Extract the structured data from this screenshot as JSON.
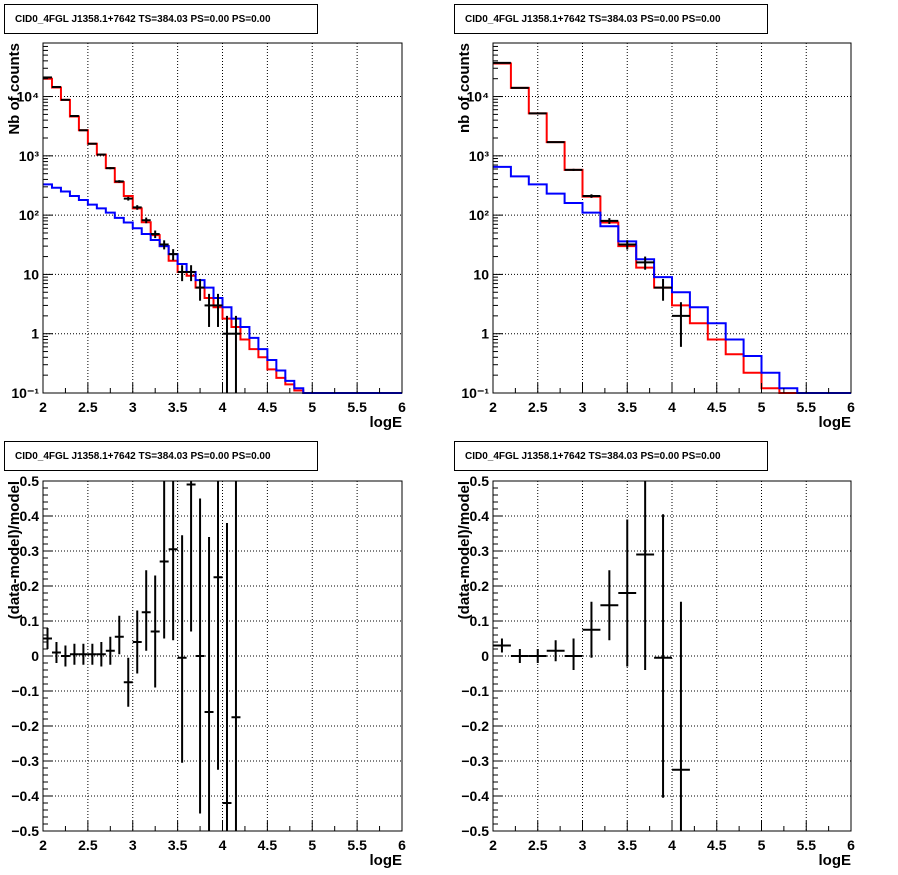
{
  "chart_data": [
    {
      "type": "histogram",
      "title": "CID0_4FGL J1358.1+7642 TS=384.03 PS=0.00 PS=0.00",
      "xlabel": "logE",
      "ylabel": "Nb of counts",
      "xlim": [
        2,
        6
      ],
      "ylim": [
        0.1,
        80000
      ],
      "yscale": "log",
      "grid": true,
      "x_ticks": [
        "2",
        "2.5",
        "3",
        "3.5",
        "4",
        "4.5",
        "5",
        "5.5",
        "6"
      ],
      "y_ticks": [
        {
          "v": 0.1,
          "label": "10⁻¹"
        },
        {
          "v": 1,
          "label": "1"
        },
        {
          "v": 10,
          "label": "10"
        },
        {
          "v": 100,
          "label": "10²"
        },
        {
          "v": 1000,
          "label": "10³"
        },
        {
          "v": 10000,
          "label": "10⁴"
        }
      ],
      "bin_edges": [
        2.0,
        2.1,
        2.2,
        2.3,
        2.4,
        2.5,
        2.6,
        2.7,
        2.8,
        2.9,
        3.0,
        3.1,
        3.2,
        3.3,
        3.4,
        3.5,
        3.6,
        3.7,
        3.8,
        3.9,
        4.0,
        4.1,
        4.2,
        4.3,
        4.4,
        4.5,
        4.6,
        4.7,
        4.8,
        4.9,
        5.0,
        5.1,
        5.2,
        5.3,
        5.4,
        5.5,
        5.6,
        5.7,
        5.8,
        5.9,
        6.0
      ],
      "series": [
        {
          "color": "#000000",
          "style": "errorbars",
          "x": [
            2.05,
            2.15,
            2.25,
            2.35,
            2.45,
            2.55,
            2.65,
            2.75,
            2.85,
            2.95,
            3.05,
            3.15,
            3.25,
            3.35,
            3.45,
            3.55,
            3.65,
            3.75,
            3.85,
            3.95,
            4.05,
            4.15
          ],
          "values": [
            21000,
            14500,
            8800,
            4700,
            2700,
            1600,
            1050,
            620,
            370,
            190,
            135,
            82,
            48,
            32,
            22,
            11,
            11,
            6,
            3,
            3,
            1,
            1
          ],
          "err_lo": [
            145,
            120,
            94,
            69,
            52,
            40,
            32,
            25,
            19,
            14,
            12,
            9,
            7,
            5.6,
            4.7,
            3.3,
            3.3,
            2.4,
            1.7,
            1.7,
            0.9,
            0.9
          ],
          "err_hi": [
            145,
            120,
            94,
            69,
            52,
            40,
            32,
            25,
            19,
            14,
            12,
            9,
            7,
            5.6,
            4.7,
            3.3,
            3.3,
            2.4,
            1.7,
            1.7,
            1.0,
            1.0
          ]
        },
        {
          "color": "#ff0000",
          "style": "step",
          "values": [
            20000,
            14200,
            8800,
            4600,
            2700,
            1600,
            1050,
            620,
            360,
            210,
            130,
            76,
            46,
            30,
            17,
            11,
            9.5,
            6.0,
            4.0,
            2.8,
            1.8,
            1.3,
            0.8,
            0.55,
            0.4,
            0.25,
            0.18,
            0.14,
            0.11,
            0.1,
            0.1,
            0.1,
            0.1,
            0.1,
            0.1,
            0.1,
            0.1,
            0.1,
            0.1,
            0.1
          ]
        },
        {
          "color": "#0000ff",
          "style": "step",
          "values": [
            330,
            290,
            250,
            210,
            180,
            150,
            130,
            110,
            90,
            75,
            60,
            48,
            38,
            30,
            22,
            15,
            11,
            8.0,
            6.0,
            4.0,
            2.8,
            1.8,
            1.3,
            0.85,
            0.55,
            0.36,
            0.24,
            0.16,
            0.12,
            0.1,
            0.1,
            0.1,
            0.1,
            0.1,
            0.1,
            0.1,
            0.1,
            0.1,
            0.1,
            0.1
          ]
        }
      ]
    },
    {
      "type": "histogram",
      "title": "CID0_4FGL J1358.1+7642 TS=384.03 PS=0.00 PS=0.00",
      "xlabel": "logE",
      "ylabel": "nb of counts",
      "xlim": [
        2,
        6
      ],
      "ylim": [
        0.1,
        80000
      ],
      "yscale": "log",
      "grid": true,
      "x_ticks": [
        "2",
        "2.5",
        "3",
        "3.5",
        "4",
        "4.5",
        "5",
        "5.5",
        "6"
      ],
      "y_ticks": [
        {
          "v": 0.1,
          "label": "10⁻¹"
        },
        {
          "v": 1,
          "label": "1"
        },
        {
          "v": 10,
          "label": "10"
        },
        {
          "v": 100,
          "label": "10²"
        },
        {
          "v": 1000,
          "label": "10³"
        },
        {
          "v": 10000,
          "label": "10⁴"
        }
      ],
      "bin_edges": [
        2.0,
        2.2,
        2.4,
        2.6,
        2.8,
        3.0,
        3.2,
        3.4,
        3.6,
        3.8,
        4.0,
        4.2,
        4.4,
        4.6,
        4.8,
        5.0,
        5.2,
        5.4,
        5.6,
        5.8,
        6.0
      ],
      "series": [
        {
          "color": "#000000",
          "style": "errorbars",
          "x": [
            2.1,
            2.3,
            2.5,
            2.7,
            2.9,
            3.1,
            3.3,
            3.5,
            3.7,
            3.9,
            4.1
          ],
          "values": [
            37000,
            14000,
            5200,
            1700,
            580,
            210,
            80,
            32,
            16,
            6,
            2
          ],
          "err_lo": [
            190,
            118,
            72,
            41,
            24,
            14.5,
            9,
            5.7,
            4,
            2.4,
            1.4
          ],
          "err_hi": [
            190,
            118,
            72,
            41,
            24,
            14.5,
            9,
            5.7,
            4,
            2.4,
            1.4
          ]
        },
        {
          "color": "#ff0000",
          "style": "step",
          "values": [
            36000,
            14000,
            5200,
            1700,
            580,
            205,
            75,
            30,
            13,
            6.0,
            3.0,
            1.5,
            0.8,
            0.45,
            0.22,
            0.12,
            0.1,
            0.1,
            0.1,
            0.1
          ]
        },
        {
          "color": "#0000ff",
          "style": "step",
          "values": [
            650,
            450,
            330,
            230,
            160,
            110,
            65,
            36,
            18,
            9.0,
            5.0,
            2.8,
            1.5,
            0.8,
            0.42,
            0.22,
            0.12,
            0.1,
            0.1,
            0.1
          ]
        }
      ]
    },
    {
      "type": "scatter",
      "title": "CID0_4FGL J1358.1+7642 TS=384.03 PS=0.00 PS=0.00",
      "xlabel": "logE",
      "ylabel": "(data-model)/model",
      "xlim": [
        2,
        6
      ],
      "ylim": [
        -0.5,
        0.5
      ],
      "grid": true,
      "x_ticks": [
        "2",
        "2.5",
        "3",
        "3.5",
        "4",
        "4.5",
        "5",
        "5.5",
        "6"
      ],
      "y_ticks": [
        {
          "v": -0.5,
          "label": "−0.5"
        },
        {
          "v": -0.4,
          "label": "−0.4"
        },
        {
          "v": -0.3,
          "label": "−0.3"
        },
        {
          "v": -0.2,
          "label": "−0.2"
        },
        {
          "v": -0.1,
          "label": "−0.1"
        },
        {
          "v": 0,
          "label": "0"
        },
        {
          "v": 0.1,
          "label": "0.1"
        },
        {
          "v": 0.2,
          "label": "0.2"
        },
        {
          "v": 0.3,
          "label": "0.3"
        },
        {
          "v": 0.4,
          "label": "0.4"
        },
        {
          "v": 0.5,
          "label": "0.5"
        }
      ],
      "series": [
        {
          "color": "#000000",
          "style": "errorbars",
          "xhalf": 0.05,
          "x": [
            2.05,
            2.15,
            2.25,
            2.35,
            2.45,
            2.55,
            2.65,
            2.75,
            2.85,
            2.95,
            3.05,
            3.15,
            3.25,
            3.35,
            3.45,
            3.55,
            3.65,
            3.75,
            3.85,
            3.95,
            4.05,
            4.15
          ],
          "values": [
            0.05,
            0.01,
            0.0,
            0.005,
            0.005,
            0.005,
            0.005,
            0.015,
            0.055,
            -0.075,
            0.04,
            0.125,
            0.07,
            0.27,
            0.305,
            -0.005,
            0.49,
            0.0,
            -0.16,
            0.225,
            -0.42,
            -0.175
          ],
          "err_lo": [
            0.03,
            0.03,
            0.03,
            0.03,
            0.03,
            0.03,
            0.035,
            0.04,
            0.05,
            0.07,
            0.09,
            0.11,
            0.16,
            0.22,
            0.26,
            0.3,
            0.42,
            0.45,
            0.45,
            0.55,
            0.8,
            0.8
          ],
          "err_hi": [
            0.03,
            0.03,
            0.03,
            0.03,
            0.03,
            0.03,
            0.035,
            0.04,
            0.06,
            0.07,
            0.09,
            0.12,
            0.16,
            0.25,
            0.3,
            0.35,
            0.45,
            0.45,
            0.5,
            0.6,
            0.8,
            0.8
          ]
        }
      ]
    },
    {
      "type": "scatter",
      "title": "CID0_4FGL J1358.1+7642 TS=384.03 PS=0.00 PS=0.00",
      "xlabel": "logE",
      "ylabel": "(data-model)/model",
      "xlim": [
        2,
        6
      ],
      "ylim": [
        -0.5,
        0.5
      ],
      "grid": true,
      "x_ticks": [
        "2",
        "2.5",
        "3",
        "3.5",
        "4",
        "4.5",
        "5",
        "5.5",
        "6"
      ],
      "y_ticks": [
        {
          "v": -0.5,
          "label": "−0.5"
        },
        {
          "v": -0.4,
          "label": "−0.4"
        },
        {
          "v": -0.3,
          "label": "−0.3"
        },
        {
          "v": -0.2,
          "label": "−0.2"
        },
        {
          "v": -0.1,
          "label": "−0.1"
        },
        {
          "v": 0,
          "label": "0"
        },
        {
          "v": 0.1,
          "label": "0.1"
        },
        {
          "v": 0.2,
          "label": "0.2"
        },
        {
          "v": 0.3,
          "label": "0.3"
        },
        {
          "v": 0.4,
          "label": "0.4"
        },
        {
          "v": 0.5,
          "label": "0.5"
        }
      ],
      "series": [
        {
          "color": "#000000",
          "style": "errorbars",
          "xhalf": 0.1,
          "x": [
            2.1,
            2.3,
            2.5,
            2.7,
            2.9,
            3.1,
            3.3,
            3.5,
            3.7,
            3.9,
            4.1
          ],
          "values": [
            0.03,
            0.0,
            0.0,
            0.015,
            0.0,
            0.075,
            0.145,
            0.18,
            0.29,
            -0.005,
            -0.325
          ],
          "err_lo": [
            0.02,
            0.02,
            0.02,
            0.03,
            0.04,
            0.08,
            0.1,
            0.21,
            0.33,
            0.4,
            0.5
          ],
          "err_hi": [
            0.02,
            0.02,
            0.02,
            0.03,
            0.05,
            0.08,
            0.1,
            0.21,
            0.33,
            0.41,
            0.48
          ]
        }
      ]
    }
  ]
}
